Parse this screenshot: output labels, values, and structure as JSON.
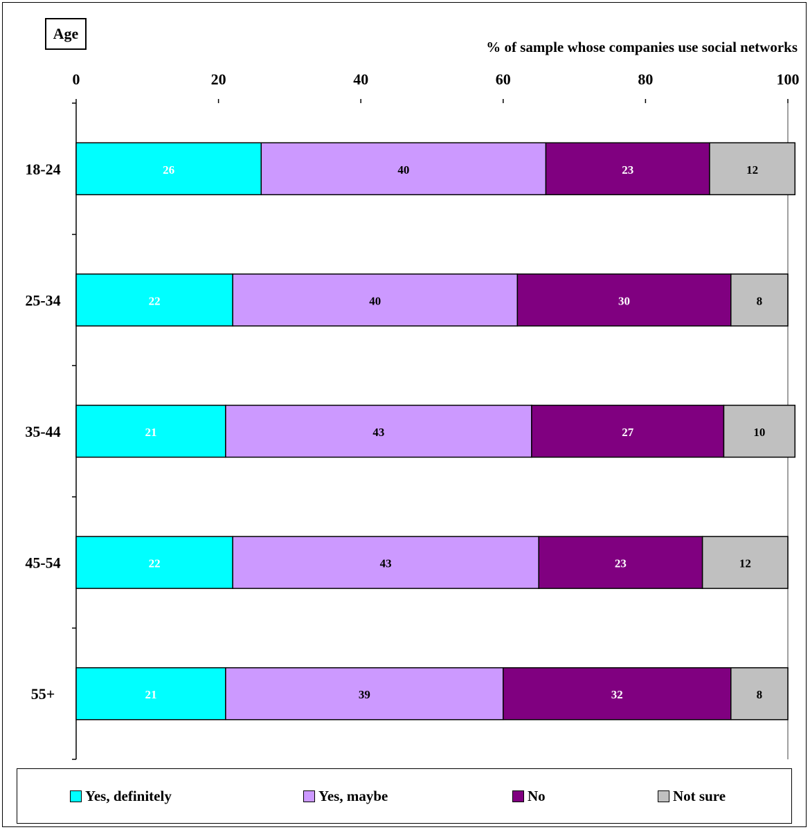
{
  "chart_data": {
    "type": "bar",
    "orientation": "horizontal",
    "stacked": true,
    "corner_label": "Age",
    "title": "% of sample whose companies use social networks",
    "categories": [
      "18-24",
      "25-34",
      "35-44",
      "45-54",
      "55+"
    ],
    "series": [
      {
        "name": "Yes, definitely",
        "color": "#00ffff",
        "label_color": "#ffffff",
        "values": [
          26,
          22,
          21,
          22,
          21
        ]
      },
      {
        "name": "Yes, maybe",
        "color": "#cc99ff",
        "label_color": "#000000",
        "values": [
          40,
          40,
          43,
          43,
          39
        ]
      },
      {
        "name": "No",
        "color": "#800080",
        "label_color": "#ffffff",
        "values": [
          23,
          30,
          27,
          23,
          32
        ]
      },
      {
        "name": "Not sure",
        "color": "#c0c0c0",
        "label_color": "#000000",
        "values": [
          12,
          8,
          10,
          12,
          8
        ]
      }
    ],
    "xlim": [
      0,
      100
    ],
    "xticks": [
      0,
      20,
      40,
      60,
      80,
      100
    ],
    "grid": false,
    "legend_position": "bottom"
  }
}
